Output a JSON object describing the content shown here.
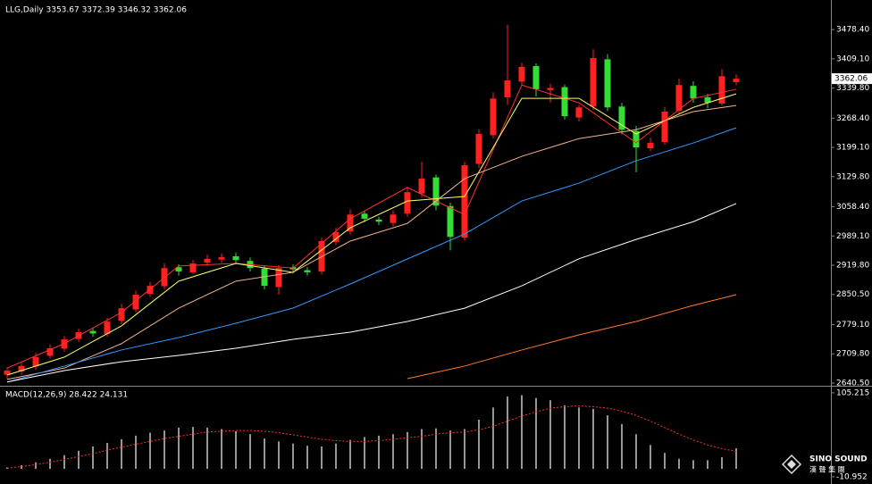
{
  "chart_data": {
    "type": "candlestick",
    "title": "LLG,Daily  3353.67 3372.39 3346.32 3362.06",
    "up_color": "#ff2020",
    "down_color": "#33dd33",
    "open": [
      2660,
      2668,
      2680,
      2705,
      2722,
      2745,
      2764,
      2757,
      2788,
      2815,
      2852,
      2870,
      2915,
      2903,
      2926,
      2933,
      2941,
      2930,
      2912,
      2868,
      2915,
      2908,
      2905,
      2975,
      3000,
      3042,
      3028,
      3020,
      3042,
      3090,
      3128,
      3060,
      2985,
      3160,
      3228,
      3318,
      3355,
      3392,
      3335,
      3342,
      3270,
      3296,
      3408,
      3296,
      3238,
      3197,
      3212,
      3286,
      3345,
      3318,
      3303,
      3353.67
    ],
    "high": [
      2678,
      2690,
      2712,
      2732,
      2752,
      2770,
      2772,
      2795,
      2828,
      2860,
      2880,
      2925,
      2922,
      2932,
      2945,
      2948,
      2950,
      2938,
      2918,
      2920,
      2922,
      2915,
      2985,
      3008,
      3052,
      3048,
      3035,
      3050,
      3105,
      3165,
      3135,
      3068,
      3165,
      3242,
      3330,
      3490,
      3400,
      3398,
      3350,
      3348,
      3300,
      3432,
      3420,
      3305,
      3250,
      3222,
      3295,
      3362,
      3356,
      3326,
      3385,
      3372.39
    ],
    "low": [
      2650,
      2660,
      2672,
      2698,
      2715,
      2738,
      2750,
      2750,
      2780,
      2808,
      2845,
      2862,
      2895,
      2898,
      2918,
      2925,
      2925,
      2905,
      2862,
      2850,
      2900,
      2895,
      2898,
      2968,
      2992,
      3022,
      3015,
      3012,
      3035,
      3080,
      3050,
      2955,
      2978,
      3150,
      3220,
      3300,
      3345,
      3320,
      3305,
      3265,
      3260,
      3288,
      3285,
      3230,
      3140,
      3190,
      3205,
      3278,
      3305,
      3292,
      3298,
      3346.32
    ],
    "close": [
      2670,
      2681,
      2702,
      2723,
      2744,
      2761,
      2758,
      2786,
      2818,
      2850,
      2871,
      2913,
      2905,
      2924,
      2935,
      2939,
      2932,
      2913,
      2871,
      2913,
      2910,
      2903,
      2977,
      2998,
      3040,
      3030,
      3023,
      3040,
      3093,
      3125,
      3061,
      2987,
      3157,
      3231,
      3315,
      3358,
      3390,
      3337,
      3340,
      3273,
      3294,
      3411,
      3294,
      3241,
      3199,
      3210,
      3284,
      3347,
      3315,
      3305,
      3368,
      3362.06
    ],
    "ma_x": [
      0,
      4,
      8,
      12,
      16,
      20,
      24,
      28,
      32,
      36,
      40,
      44,
      48,
      51
    ],
    "ma_series": [
      {
        "color": "#ff3030",
        "values": [
          2676,
          2734,
          2808,
          2918,
          2924,
          2913,
          3030,
          3104,
          3040,
          3347,
          3305,
          3210,
          3315,
          3337
        ]
      },
      {
        "color": "#ffff66",
        "values": [
          2659.4,
          2702,
          2776,
          2882,
          2924,
          2903,
          3008.6,
          3072,
          3082.7,
          3315.5,
          3315.5,
          3230.8,
          3294,
          3326
        ]
      },
      {
        "color": "#f0b48c",
        "values": [
          2649,
          2676,
          2734,
          2818,
          2882,
          2903,
          2977,
          3019,
          3125,
          3178,
          3220,
          3241,
          3284,
          3298.5
        ]
      },
      {
        "color": "#3399ff",
        "values": [
          2642.6,
          2680.7,
          2718.8,
          2748.4,
          2782.2,
          2818.2,
          2875.3,
          2934.6,
          2993.8,
          3072.1,
          3114.4,
          3167.4,
          3209.7,
          3245.6
        ]
      },
      {
        "color": "#ffffff",
        "values": [
          2643,
          2670,
          2691,
          2706,
          2723,
          2744,
          2761,
          2786.5,
          2818,
          2871,
          2935,
          2981,
          3023,
          3066
        ]
      },
      {
        "color": "#ff7a2a",
        "values": [
          null,
          null,
          null,
          null,
          null,
          null,
          null,
          2651,
          2680.7,
          2718.8,
          2754.7,
          2786.5,
          2824.6,
          2850
        ]
      }
    ],
    "ylim": [
      2634,
      3538
    ],
    "yticks": [
      {
        "value": 3478.4,
        "label": "3478.40"
      },
      {
        "value": 3409.1,
        "label": "3409.10"
      },
      {
        "value": 3339.8,
        "label": "3339.80"
      },
      {
        "value": 3268.4,
        "label": "3268.40"
      },
      {
        "value": 3199.1,
        "label": "3199.10"
      },
      {
        "value": 3129.8,
        "label": "3129.80"
      },
      {
        "value": 3058.4,
        "label": "3058.40"
      },
      {
        "value": 2989.1,
        "label": "2989.10"
      },
      {
        "value": 2919.8,
        "label": "2919.80"
      },
      {
        "value": 2850.5,
        "label": "2850.50"
      },
      {
        "value": 2779.1,
        "label": "2779.10"
      },
      {
        "value": 2709.8,
        "label": "2709.80"
      },
      {
        "value": 2640.5,
        "label": "2640.50"
      }
    ],
    "macd": {
      "label": "MACD(12,26,9) 28.422 24.131",
      "histogram": [
        2,
        5,
        9,
        14,
        19,
        25,
        31,
        36,
        41,
        46,
        50,
        53,
        57,
        58,
        57,
        55,
        52,
        48,
        42,
        38,
        35,
        32,
        31,
        35,
        40,
        44,
        46,
        48,
        51,
        55,
        56,
        53,
        55,
        68,
        85,
        100,
        102,
        98,
        95,
        88,
        85,
        83,
        74,
        62,
        48,
        33,
        22,
        14,
        12,
        12,
        16,
        28.422
      ],
      "signal": [
        1,
        3,
        6,
        9,
        13,
        17,
        21,
        26,
        30,
        34,
        38,
        42,
        45,
        48,
        51,
        52,
        53,
        53,
        52,
        50,
        47,
        44,
        41,
        39,
        38,
        38,
        39,
        41,
        43,
        45,
        48,
        50,
        51,
        54,
        59,
        66,
        73,
        79,
        84,
        86,
        87,
        86,
        84,
        80,
        74,
        66,
        57,
        48,
        40,
        33,
        28,
        24.131
      ],
      "hist_color": "#c8c8c8",
      "signal_color": "#ff3030",
      "ylim": [
        -18.5,
        112.5
      ],
      "yticks": [
        105.215,
        -10.952
      ]
    },
    "logo": {
      "name": "SINO SOUND",
      "subtitle": "漢 聲 集 團"
    }
  }
}
